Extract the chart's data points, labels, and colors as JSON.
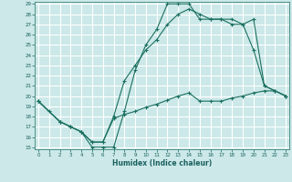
{
  "xlabel": "Humidex (Indice chaleur)",
  "background_color": "#cce8e8",
  "grid_color": "#b0d8d8",
  "line_color": "#1a7060",
  "ylim": [
    15,
    29
  ],
  "xlim": [
    0,
    23
  ],
  "yticks": [
    15,
    16,
    17,
    18,
    19,
    20,
    21,
    22,
    23,
    24,
    25,
    26,
    27,
    28,
    29
  ],
  "xticks": [
    0,
    1,
    2,
    3,
    4,
    5,
    6,
    7,
    8,
    9,
    10,
    11,
    12,
    13,
    14,
    15,
    16,
    17,
    18,
    19,
    20,
    21,
    22,
    23
  ],
  "line1_x": [
    0,
    1,
    2,
    3,
    4,
    5,
    6,
    7,
    8,
    9,
    10,
    11,
    12,
    13,
    14,
    15,
    16,
    17,
    18,
    19,
    20,
    21,
    22,
    23
  ],
  "line1_y": [
    19.5,
    18.5,
    17.5,
    17.0,
    16.5,
    15.0,
    15.0,
    15.0,
    18.5,
    22.5,
    25.0,
    26.5,
    29.0,
    29.0,
    29.0,
    27.5,
    27.5,
    27.5,
    27.0,
    27.0,
    24.5,
    21.0,
    20.5,
    20.0
  ],
  "line2_x": [
    0,
    2,
    3,
    4,
    5,
    6,
    7,
    8,
    9,
    10,
    11,
    12,
    13,
    14,
    15,
    16,
    17,
    18,
    19,
    20,
    21,
    22,
    23
  ],
  "line2_y": [
    19.5,
    17.5,
    17.0,
    16.5,
    15.5,
    15.5,
    18.0,
    21.5,
    23.0,
    24.5,
    25.5,
    27.0,
    28.0,
    28.5,
    28.0,
    27.5,
    27.5,
    27.5,
    27.0,
    27.5,
    21.0,
    20.5,
    20.0
  ],
  "line3_x": [
    0,
    2,
    3,
    4,
    5,
    6,
    7,
    8,
    9,
    10,
    11,
    12,
    13,
    14,
    15,
    16,
    17,
    18,
    19,
    20,
    21,
    22,
    23
  ],
  "line3_y": [
    19.5,
    17.5,
    17.0,
    16.5,
    15.5,
    15.5,
    17.8,
    18.2,
    18.5,
    18.9,
    19.2,
    19.6,
    20.0,
    20.3,
    19.5,
    19.5,
    19.5,
    19.8,
    20.0,
    20.3,
    20.5,
    20.5,
    20.0
  ]
}
